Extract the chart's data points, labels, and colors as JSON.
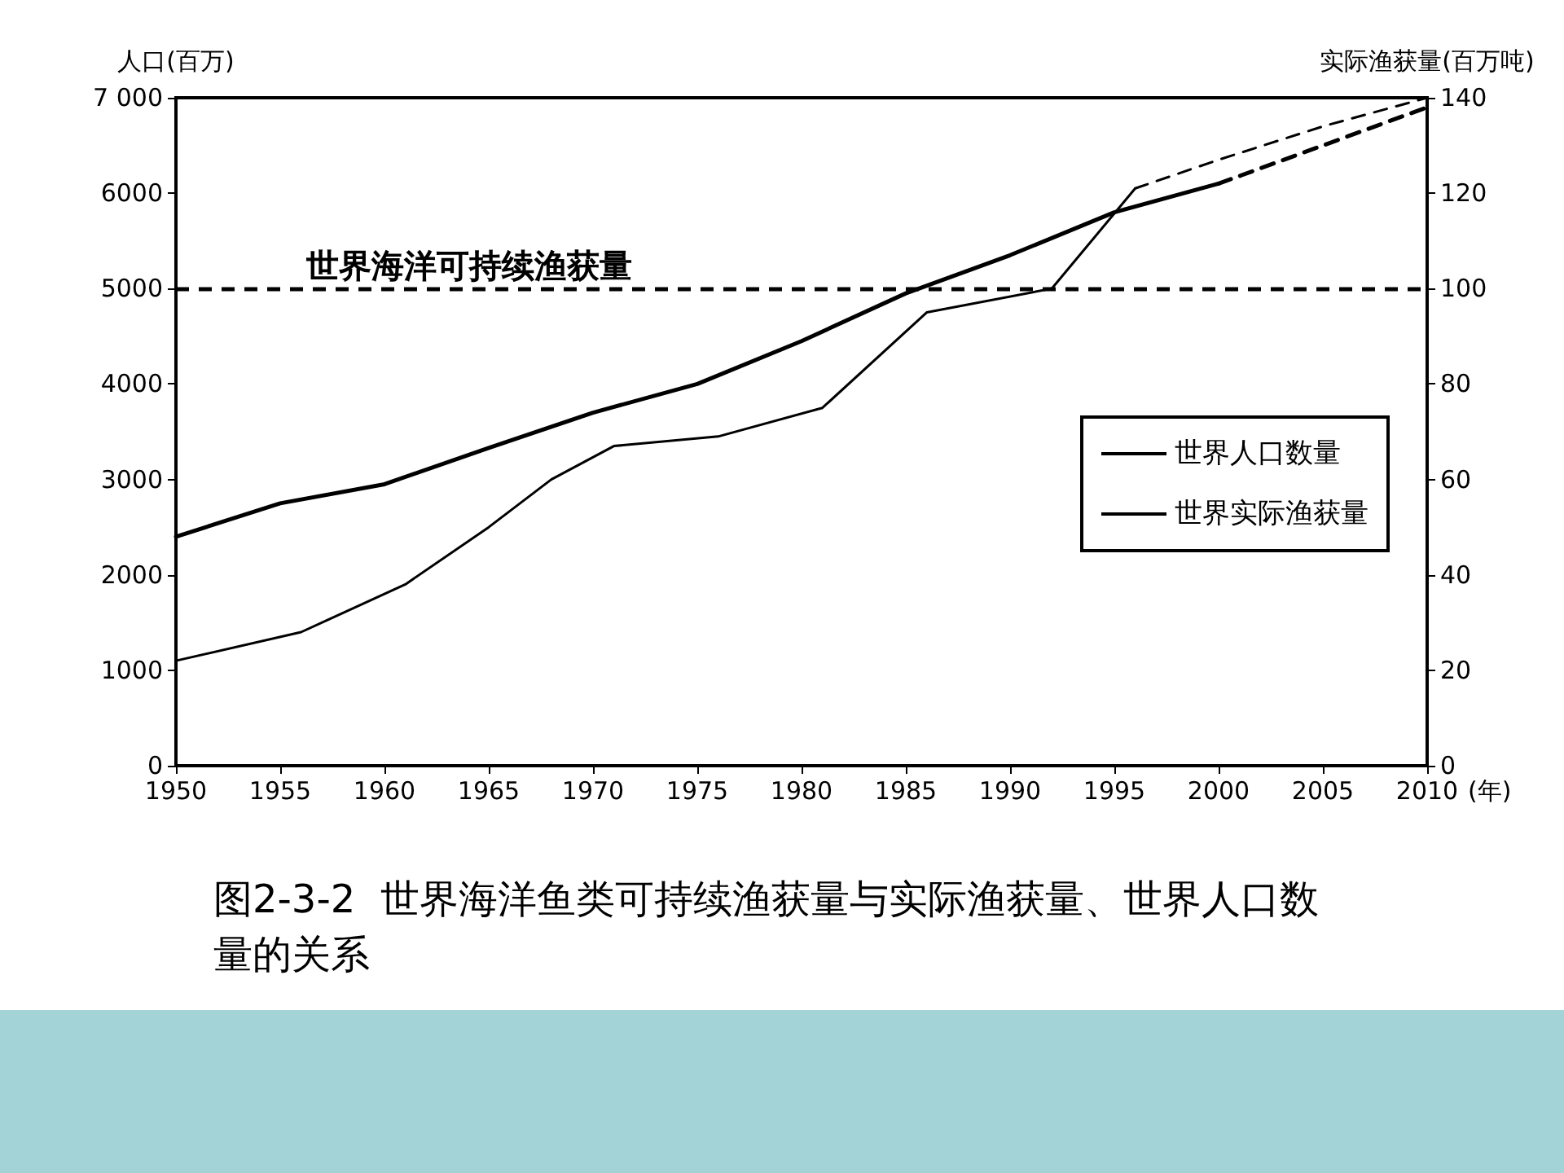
{
  "chart_data": {
    "type": "line",
    "title": "图2-3-2  世界海洋鱼类可持续渔获量与实际渔获量、世界人口数量的关系",
    "xlabel": "(年)",
    "ylabel": "人口(百万)",
    "y2label": "实际渔获量(百万吨)",
    "xlim": [
      1950,
      2010
    ],
    "xticks": [
      1950,
      1955,
      1960,
      1965,
      1970,
      1975,
      1980,
      1985,
      1990,
      1995,
      2000,
      2005,
      2010
    ],
    "ylim": [
      0,
      7000
    ],
    "yticks": [
      0,
      1000,
      2000,
      3000,
      4000,
      5000,
      6000,
      {
        "value": 7000,
        "label": "7 000"
      }
    ],
    "y2lim": [
      0,
      140
    ],
    "y2ticks": [
      0,
      20,
      40,
      60,
      80,
      100,
      120,
      140
    ],
    "series": [
      {
        "name": "世界人口数量",
        "color": "#000000",
        "line_style": "solid",
        "x": [
          1950,
          1955,
          1960,
          1965,
          1970,
          1975,
          1980,
          1985,
          1990,
          1995,
          2000
        ],
        "values": [
          2400,
          2750,
          2950,
          3330,
          3700,
          4000,
          4450,
          4950,
          5350,
          5800,
          6100
        ]
      },
      {
        "color": "#000000",
        "line_style": "dashed",
        "x": [
          2000,
          2005,
          2010
        ],
        "values": [
          6100,
          6500,
          6900
        ]
      },
      {
        "name": "世界实际渔获量",
        "color": "#000000",
        "axis": "y2",
        "line_style": "solid",
        "x": [
          1950,
          1956,
          1961,
          1965,
          1968,
          1971,
          1976,
          1981,
          1986,
          1992,
          1996
        ],
        "values": [
          22,
          28,
          38,
          50,
          60,
          67,
          69,
          75,
          95,
          100,
          121
        ]
      },
      {
        "color": "#000000",
        "axis": "y2",
        "line_style": "dashed",
        "x": [
          1996,
          2000,
          2005,
          2010
        ],
        "values": [
          121,
          127,
          134,
          140
        ]
      }
    ],
    "ref_lines": [
      {
        "axis": "y2",
        "value": 100,
        "label": "世界海洋可持续渔获量",
        "color": "#000000",
        "line_style": "dashed"
      }
    ],
    "legend": "right",
    "grid": false,
    "marker": "none"
  }
}
